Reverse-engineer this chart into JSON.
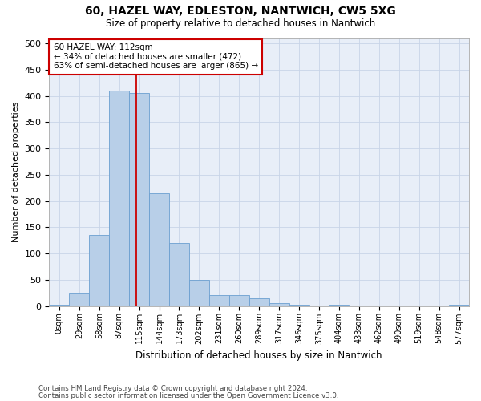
{
  "title1": "60, HAZEL WAY, EDLESTON, NANTWICH, CW5 5XG",
  "title2": "Size of property relative to detached houses in Nantwich",
  "xlabel": "Distribution of detached houses by size in Nantwich",
  "ylabel": "Number of detached properties",
  "footer1": "Contains HM Land Registry data © Crown copyright and database right 2024.",
  "footer2": "Contains public sector information licensed under the Open Government Licence v3.0.",
  "bin_labels": [
    "0sqm",
    "29sqm",
    "58sqm",
    "87sqm",
    "115sqm",
    "144sqm",
    "173sqm",
    "202sqm",
    "231sqm",
    "260sqm",
    "289sqm",
    "317sqm",
    "346sqm",
    "375sqm",
    "404sqm",
    "433sqm",
    "462sqm",
    "490sqm",
    "519sqm",
    "548sqm",
    "577sqm"
  ],
  "bar_values": [
    2,
    25,
    135,
    410,
    405,
    215,
    120,
    50,
    20,
    20,
    15,
    5,
    2,
    1,
    2,
    1,
    1,
    1,
    1,
    1,
    2
  ],
  "bar_color": "#b8cfe8",
  "bar_edge_color": "#6b9fd0",
  "grid_color": "#c8d4e8",
  "bg_color": "#e8eef8",
  "annotation_text": "60 HAZEL WAY: 112sqm\n← 34% of detached houses are smaller (472)\n63% of semi-detached houses are larger (865) →",
  "annotation_box_color": "#ffffff",
  "annotation_box_edge": "#cc0000",
  "red_line_x": 3.86,
  "ylim": [
    0,
    510
  ],
  "yticks": [
    0,
    50,
    100,
    150,
    200,
    250,
    300,
    350,
    400,
    450,
    500
  ]
}
